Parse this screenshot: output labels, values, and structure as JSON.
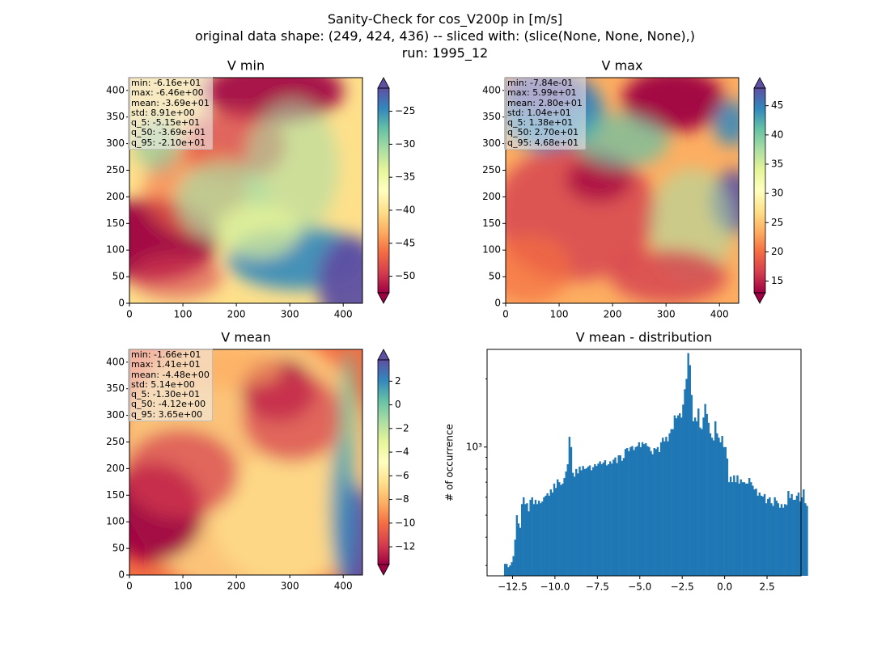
{
  "suptitle": {
    "line1": "Sanity-Check for cos_V200p in [m/s]",
    "line2": "original data shape: (249, 424, 436) -- sliced with: (slice(None, None, None),)",
    "line3": "run: 1995_12"
  },
  "colormap": "Spectral",
  "chart_data": [
    {
      "type": "heatmap",
      "title": "V min",
      "xlim": [
        0,
        436
      ],
      "ylim": [
        0,
        424
      ],
      "x_ticks": [
        0,
        100,
        200,
        300,
        400
      ],
      "y_ticks": [
        0,
        50,
        100,
        150,
        200,
        250,
        300,
        350,
        400
      ],
      "colorbar": {
        "range": [
          -52.5,
          -21.5
        ],
        "ticks": [
          -50,
          -45,
          -40,
          -35,
          -30,
          -25
        ],
        "extend": "both"
      },
      "stats": [
        "min: -6.16e+01",
        "max: -6.46e+00",
        "mean: -3.69e+01",
        "std: 8.91e+00",
        "q_5: -5.15e+01",
        "q_50: -3.69e+01",
        "q_95: -2.10e+01"
      ]
    },
    {
      "type": "heatmap",
      "title": "V max",
      "xlim": [
        0,
        436
      ],
      "ylim": [
        0,
        424
      ],
      "x_ticks": [
        0,
        100,
        200,
        300,
        400
      ],
      "y_ticks": [
        0,
        50,
        100,
        150,
        200,
        250,
        300,
        350,
        400
      ],
      "colorbar": {
        "range": [
          13,
          48
        ],
        "ticks": [
          15,
          20,
          25,
          30,
          35,
          40,
          45
        ],
        "extend": "both"
      },
      "stats": [
        "min: -7.84e-01",
        "max: 5.99e+01",
        "mean: 2.80e+01",
        "std: 1.04e+01",
        "q_5: 1.38e+01",
        "q_50: 2.70e+01",
        "q_95: 4.68e+01"
      ]
    },
    {
      "type": "heatmap",
      "title": "V mean",
      "xlim": [
        0,
        436
      ],
      "ylim": [
        0,
        424
      ],
      "x_ticks": [
        0,
        100,
        200,
        300,
        400
      ],
      "y_ticks": [
        0,
        50,
        100,
        150,
        200,
        250,
        300,
        350,
        400
      ],
      "colorbar": {
        "range": [
          -13.5,
          3.8
        ],
        "ticks": [
          -12,
          -10,
          -8,
          -6,
          -4,
          -2,
          0,
          2
        ],
        "extend": "both"
      },
      "stats": [
        "min: -1.66e+01",
        "max: 1.41e+01",
        "mean: -4.48e+00",
        "std: 5.14e+00",
        "q_5: -1.30e+01",
        "q_50: -4.12e+00",
        "q_95: 3.65e+00"
      ]
    },
    {
      "type": "bar",
      "title": "V mean - distribution",
      "ylabel": "# of occurrence",
      "yscale": "log",
      "color": "#1f77b4",
      "xlim": [
        -14.0,
        4.5
      ],
      "ylim": [
        270,
        2700
      ],
      "x_ticks": [
        -12.5,
        -10.0,
        -7.5,
        -5.0,
        -2.5,
        0.0,
        2.5
      ],
      "x_tick_labels": [
        "−12.5",
        "−10.0",
        "−7.5",
        "−5.0",
        "−2.5",
        "0.0",
        "2.5"
      ],
      "y_major_ticks": [
        1000
      ],
      "y_major_labels": [
        "10³"
      ],
      "y_minor_ticks": [
        300,
        400,
        500,
        600,
        700,
        800,
        900,
        2000
      ],
      "bin_start": -13.0,
      "bin_width": 0.1,
      "values": [
        305,
        305,
        295,
        300,
        310,
        330,
        390,
        500,
        460,
        440,
        560,
        600,
        560,
        565,
        520,
        585,
        600,
        560,
        585,
        560,
        580,
        565,
        575,
        600,
        610,
        625,
        610,
        650,
        630,
        690,
        660,
        720,
        700,
        680,
        690,
        730,
        780,
        840,
        1110,
        1000,
        770,
        740,
        800,
        765,
        820,
        790,
        825,
        800,
        805,
        820,
        830,
        790,
        815,
        840,
        825,
        845,
        865,
        840,
        855,
        875,
        830,
        840,
        865,
        845,
        880,
        900,
        850,
        920,
        920,
        870,
        895,
        980,
        990,
        960,
        1000,
        1010,
        970,
        1000,
        1010,
        1050,
        1000,
        1050,
        1030,
        1040,
        1010,
        1000,
        960,
        930,
        990,
        980,
        1000,
        950,
        1050,
        1100,
        1060,
        1110,
        1060,
        1150,
        1200,
        1200,
        1380,
        1340,
        1380,
        1410,
        1350,
        1540,
        1800,
        2000,
        2600,
        2300,
        1700,
        1300,
        1350,
        1300,
        1480,
        1220,
        1200,
        1350,
        1550,
        1400,
        1280,
        1150,
        1100,
        1070,
        1300,
        1150,
        1100,
        1050,
        1120,
        1000,
        1000,
        890,
        700,
        740,
        700,
        750,
        700,
        750,
        690,
        720,
        700,
        700,
        690,
        690,
        730,
        700,
        675,
        650,
        655,
        610,
        630,
        610,
        605,
        620,
        565,
        590,
        600,
        565,
        550,
        600,
        580,
        565,
        540,
        560,
        540,
        560,
        555,
        640,
        595,
        620,
        585,
        585,
        610,
        630,
        575,
        600,
        650,
        565,
        550
      ]
    }
  ]
}
